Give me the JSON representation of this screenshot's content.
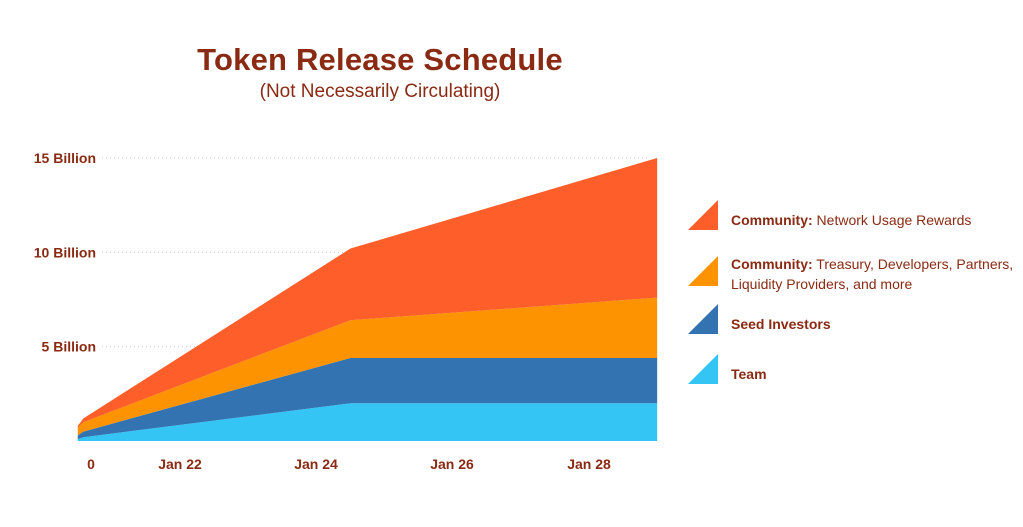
{
  "chart_data": {
    "type": "area",
    "stacked": true,
    "title": "Token Release Schedule",
    "subtitle": "(Not Necessarily Circulating)",
    "x_ticks": [
      "0",
      "Jan 22",
      "Jan 24",
      "Jan 26",
      "Jan 28"
    ],
    "y_ticks": [
      "5 Billion",
      "10 Billion",
      "15 Billion"
    ],
    "ylim": [
      0,
      15
    ],
    "grid": "horizontal dotted",
    "legend_position": "right",
    "x": [
      "2020-07",
      "2020-08",
      "2024-07",
      "2029-01"
    ],
    "series": [
      {
        "name": "Team",
        "color": "#35c5f4",
        "values": [
          0.1,
          0.2,
          2.0,
          2.0
        ]
      },
      {
        "name": "Seed Investors",
        "color": "#3373b1",
        "values": [
          0.2,
          0.3,
          2.4,
          2.4
        ]
      },
      {
        "name": "Community: Treasury, Developers, Partners, Liquidity Providers, and more",
        "color": "#fd9300",
        "values": [
          0.4,
          0.5,
          2.0,
          3.2
        ]
      },
      {
        "name": "Community: Network Usage Rewards",
        "color": "#fd5e2a",
        "values": [
          0.1,
          0.2,
          3.8,
          7.4
        ]
      }
    ]
  },
  "legend": [
    {
      "bold": "Community:",
      "text": " Network Usage Rewards",
      "color": "#fd5e2a"
    },
    {
      "bold": "Community:",
      "text": " Treasury, Developers, Partners, Liquidity Providers, and more",
      "color": "#fd9300"
    },
    {
      "bold": "Seed Investors",
      "text": "",
      "color": "#3373b1"
    },
    {
      "bold": "Team",
      "text": "",
      "color": "#35c5f4"
    }
  ]
}
